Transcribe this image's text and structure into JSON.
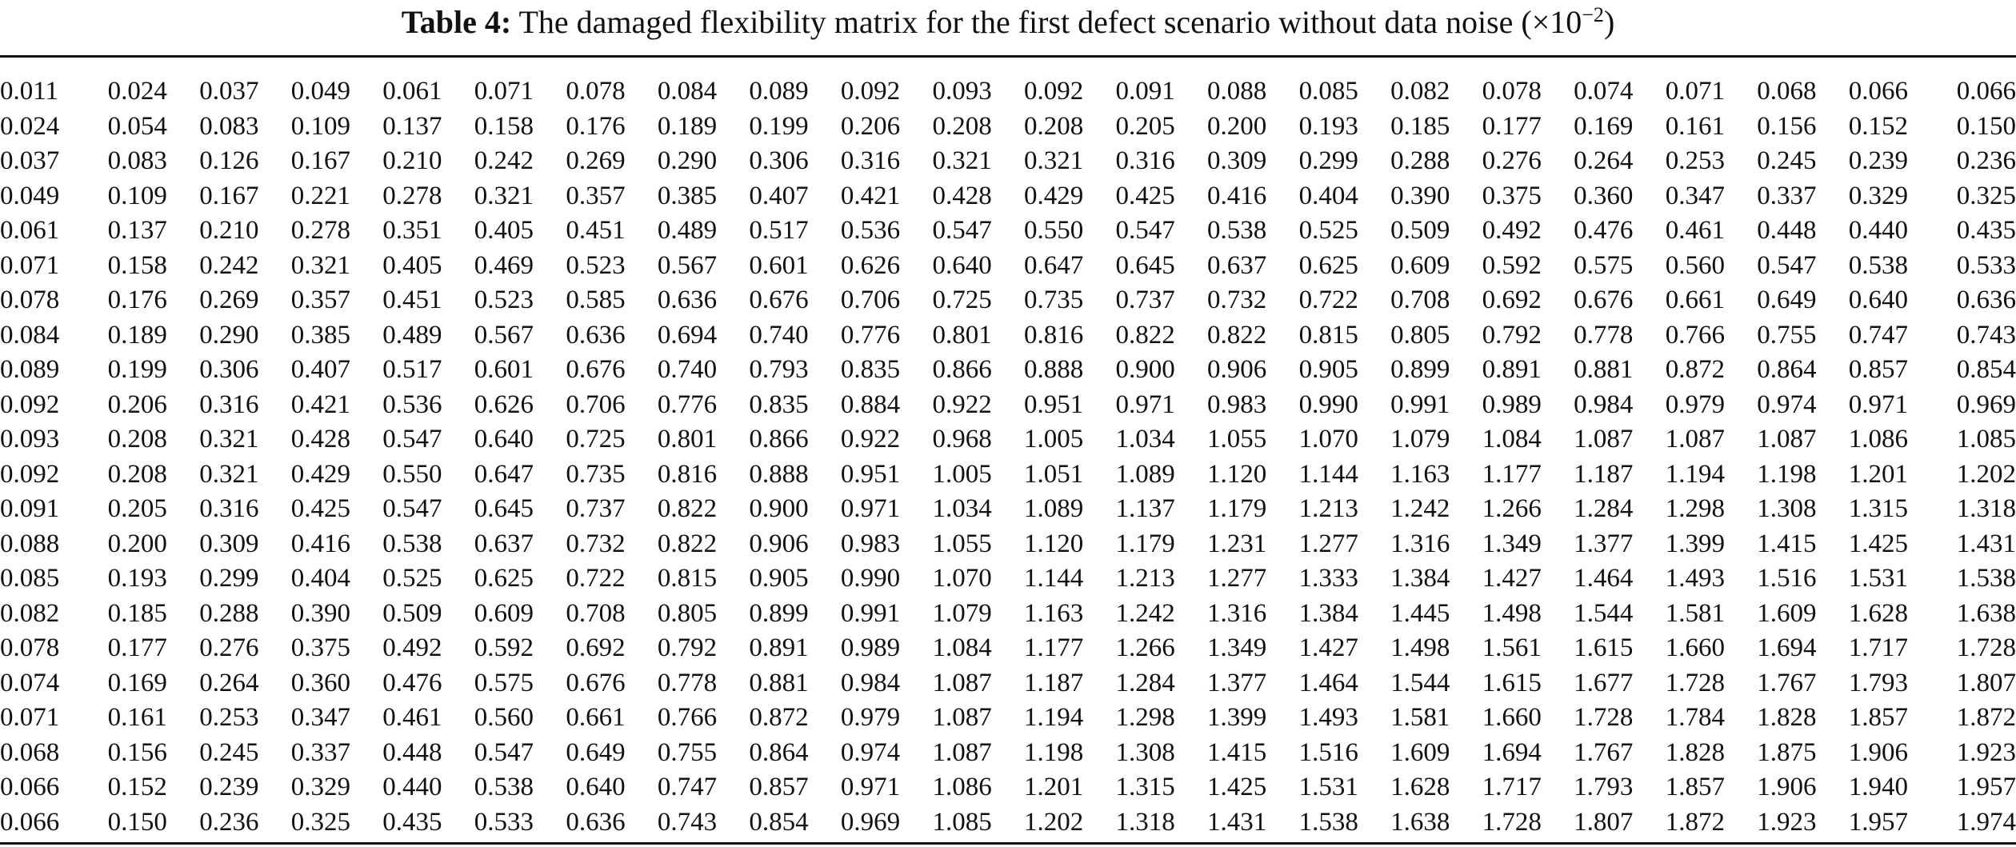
{
  "caption": {
    "label": "Table 4:",
    "text": "The damaged flexibility matrix for the first defect scenario without data noise (×10",
    "exponent": "−2",
    "close": ")"
  },
  "chart_data": {
    "type": "table",
    "title": "Table 4: The damaged flexibility matrix for the first defect scenario without data noise (×10−2)",
    "rows": [
      [
        "0.011",
        "0.024",
        "0.037",
        "0.049",
        "0.061",
        "0.071",
        "0.078",
        "0.084",
        "0.089",
        "0.092",
        "0.093",
        "0.092",
        "0.091",
        "0.088",
        "0.085",
        "0.082",
        "0.078",
        "0.074",
        "0.071",
        "0.068",
        "0.066",
        "0.066"
      ],
      [
        "0.024",
        "0.054",
        "0.083",
        "0.109",
        "0.137",
        "0.158",
        "0.176",
        "0.189",
        "0.199",
        "0.206",
        "0.208",
        "0.208",
        "0.205",
        "0.200",
        "0.193",
        "0.185",
        "0.177",
        "0.169",
        "0.161",
        "0.156",
        "0.152",
        "0.150"
      ],
      [
        "0.037",
        "0.083",
        "0.126",
        "0.167",
        "0.210",
        "0.242",
        "0.269",
        "0.290",
        "0.306",
        "0.316",
        "0.321",
        "0.321",
        "0.316",
        "0.309",
        "0.299",
        "0.288",
        "0.276",
        "0.264",
        "0.253",
        "0.245",
        "0.239",
        "0.236"
      ],
      [
        "0.049",
        "0.109",
        "0.167",
        "0.221",
        "0.278",
        "0.321",
        "0.357",
        "0.385",
        "0.407",
        "0.421",
        "0.428",
        "0.429",
        "0.425",
        "0.416",
        "0.404",
        "0.390",
        "0.375",
        "0.360",
        "0.347",
        "0.337",
        "0.329",
        "0.325"
      ],
      [
        "0.061",
        "0.137",
        "0.210",
        "0.278",
        "0.351",
        "0.405",
        "0.451",
        "0.489",
        "0.517",
        "0.536",
        "0.547",
        "0.550",
        "0.547",
        "0.538",
        "0.525",
        "0.509",
        "0.492",
        "0.476",
        "0.461",
        "0.448",
        "0.440",
        "0.435"
      ],
      [
        "0.071",
        "0.158",
        "0.242",
        "0.321",
        "0.405",
        "0.469",
        "0.523",
        "0.567",
        "0.601",
        "0.626",
        "0.640",
        "0.647",
        "0.645",
        "0.637",
        "0.625",
        "0.609",
        "0.592",
        "0.575",
        "0.560",
        "0.547",
        "0.538",
        "0.533"
      ],
      [
        "0.078",
        "0.176",
        "0.269",
        "0.357",
        "0.451",
        "0.523",
        "0.585",
        "0.636",
        "0.676",
        "0.706",
        "0.725",
        "0.735",
        "0.737",
        "0.732",
        "0.722",
        "0.708",
        "0.692",
        "0.676",
        "0.661",
        "0.649",
        "0.640",
        "0.636"
      ],
      [
        "0.084",
        "0.189",
        "0.290",
        "0.385",
        "0.489",
        "0.567",
        "0.636",
        "0.694",
        "0.740",
        "0.776",
        "0.801",
        "0.816",
        "0.822",
        "0.822",
        "0.815",
        "0.805",
        "0.792",
        "0.778",
        "0.766",
        "0.755",
        "0.747",
        "0.743"
      ],
      [
        "0.089",
        "0.199",
        "0.306",
        "0.407",
        "0.517",
        "0.601",
        "0.676",
        "0.740",
        "0.793",
        "0.835",
        "0.866",
        "0.888",
        "0.900",
        "0.906",
        "0.905",
        "0.899",
        "0.891",
        "0.881",
        "0.872",
        "0.864",
        "0.857",
        "0.854"
      ],
      [
        "0.092",
        "0.206",
        "0.316",
        "0.421",
        "0.536",
        "0.626",
        "0.706",
        "0.776",
        "0.835",
        "0.884",
        "0.922",
        "0.951",
        "0.971",
        "0.983",
        "0.990",
        "0.991",
        "0.989",
        "0.984",
        "0.979",
        "0.974",
        "0.971",
        "0.969"
      ],
      [
        "0.093",
        "0.208",
        "0.321",
        "0.428",
        "0.547",
        "0.640",
        "0.725",
        "0.801",
        "0.866",
        "0.922",
        "0.968",
        "1.005",
        "1.034",
        "1.055",
        "1.070",
        "1.079",
        "1.084",
        "1.087",
        "1.087",
        "1.087",
        "1.086",
        "1.085"
      ],
      [
        "0.092",
        "0.208",
        "0.321",
        "0.429",
        "0.550",
        "0.647",
        "0.735",
        "0.816",
        "0.888",
        "0.951",
        "1.005",
        "1.051",
        "1.089",
        "1.120",
        "1.144",
        "1.163",
        "1.177",
        "1.187",
        "1.194",
        "1.198",
        "1.201",
        "1.202"
      ],
      [
        "0.091",
        "0.205",
        "0.316",
        "0.425",
        "0.547",
        "0.645",
        "0.737",
        "0.822",
        "0.900",
        "0.971",
        "1.034",
        "1.089",
        "1.137",
        "1.179",
        "1.213",
        "1.242",
        "1.266",
        "1.284",
        "1.298",
        "1.308",
        "1.315",
        "1.318"
      ],
      [
        "0.088",
        "0.200",
        "0.309",
        "0.416",
        "0.538",
        "0.637",
        "0.732",
        "0.822",
        "0.906",
        "0.983",
        "1.055",
        "1.120",
        "1.179",
        "1.231",
        "1.277",
        "1.316",
        "1.349",
        "1.377",
        "1.399",
        "1.415",
        "1.425",
        "1.431"
      ],
      [
        "0.085",
        "0.193",
        "0.299",
        "0.404",
        "0.525",
        "0.625",
        "0.722",
        "0.815",
        "0.905",
        "0.990",
        "1.070",
        "1.144",
        "1.213",
        "1.277",
        "1.333",
        "1.384",
        "1.427",
        "1.464",
        "1.493",
        "1.516",
        "1.531",
        "1.538"
      ],
      [
        "0.082",
        "0.185",
        "0.288",
        "0.390",
        "0.509",
        "0.609",
        "0.708",
        "0.805",
        "0.899",
        "0.991",
        "1.079",
        "1.163",
        "1.242",
        "1.316",
        "1.384",
        "1.445",
        "1.498",
        "1.544",
        "1.581",
        "1.609",
        "1.628",
        "1.638"
      ],
      [
        "0.078",
        "0.177",
        "0.276",
        "0.375",
        "0.492",
        "0.592",
        "0.692",
        "0.792",
        "0.891",
        "0.989",
        "1.084",
        "1.177",
        "1.266",
        "1.349",
        "1.427",
        "1.498",
        "1.561",
        "1.615",
        "1.660",
        "1.694",
        "1.717",
        "1.728"
      ],
      [
        "0.074",
        "0.169",
        "0.264",
        "0.360",
        "0.476",
        "0.575",
        "0.676",
        "0.778",
        "0.881",
        "0.984",
        "1.087",
        "1.187",
        "1.284",
        "1.377",
        "1.464",
        "1.544",
        "1.615",
        "1.677",
        "1.728",
        "1.767",
        "1.793",
        "1.807"
      ],
      [
        "0.071",
        "0.161",
        "0.253",
        "0.347",
        "0.461",
        "0.560",
        "0.661",
        "0.766",
        "0.872",
        "0.979",
        "1.087",
        "1.194",
        "1.298",
        "1.399",
        "1.493",
        "1.581",
        "1.660",
        "1.728",
        "1.784",
        "1.828",
        "1.857",
        "1.872"
      ],
      [
        "0.068",
        "0.156",
        "0.245",
        "0.337",
        "0.448",
        "0.547",
        "0.649",
        "0.755",
        "0.864",
        "0.974",
        "1.087",
        "1.198",
        "1.308",
        "1.415",
        "1.516",
        "1.609",
        "1.694",
        "1.767",
        "1.828",
        "1.875",
        "1.906",
        "1.923"
      ],
      [
        "0.066",
        "0.152",
        "0.239",
        "0.329",
        "0.440",
        "0.538",
        "0.640",
        "0.747",
        "0.857",
        "0.971",
        "1.086",
        "1.201",
        "1.315",
        "1.425",
        "1.531",
        "1.628",
        "1.717",
        "1.793",
        "1.857",
        "1.906",
        "1.940",
        "1.957"
      ],
      [
        "0.066",
        "0.150",
        "0.236",
        "0.325",
        "0.435",
        "0.533",
        "0.636",
        "0.743",
        "0.854",
        "0.969",
        "1.085",
        "1.202",
        "1.318",
        "1.431",
        "1.538",
        "1.638",
        "1.728",
        "1.807",
        "1.872",
        "1.923",
        "1.957",
        "1.974"
      ]
    ]
  }
}
